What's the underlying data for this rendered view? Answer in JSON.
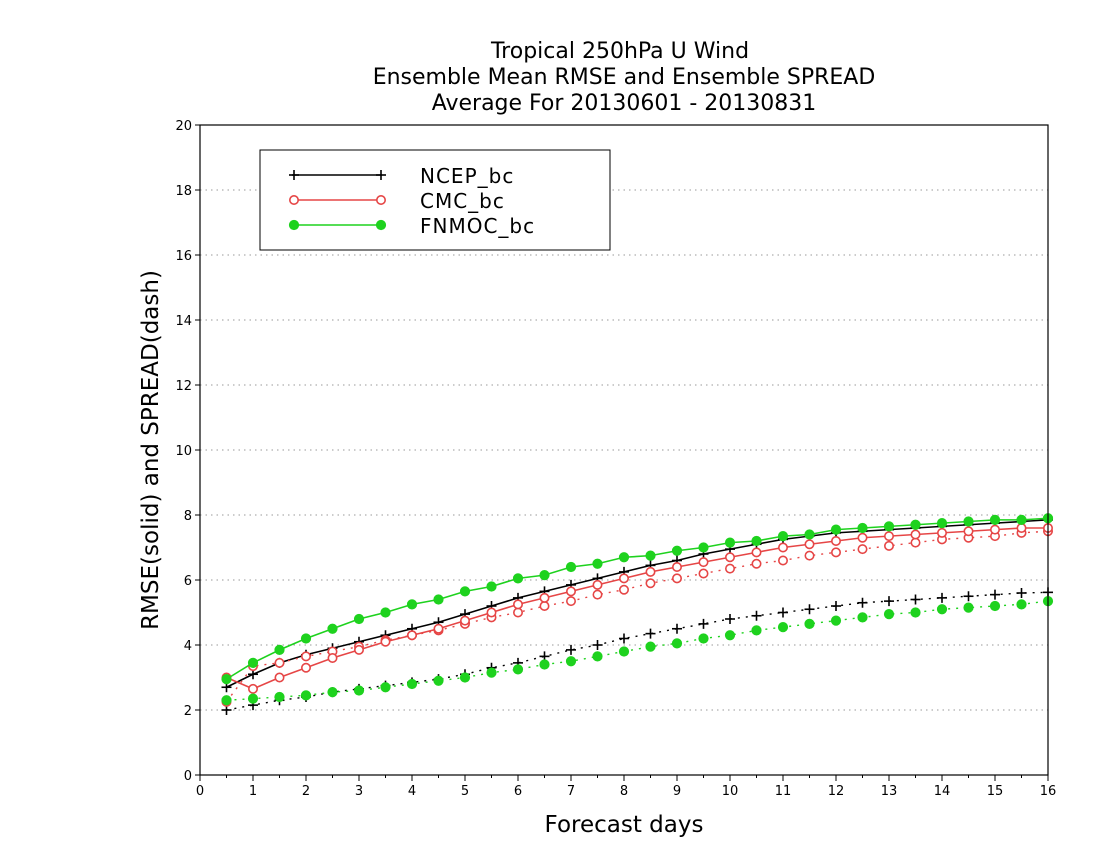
{
  "chart_data": {
    "type": "line",
    "title": [
      "Tropical 250hPa U Wind",
      "Ensemble Mean RMSE and Ensemble SPREAD",
      "Average For 20130601 - 20130831"
    ],
    "xlabel": "Forecast days",
    "ylabel": "RMSE(solid) and SPREAD(dash)",
    "xlim": [
      0,
      16
    ],
    "ylim": [
      0,
      20
    ],
    "xticks": [
      "0",
      "1",
      "2",
      "3",
      "4",
      "5",
      "6",
      "7",
      "8",
      "9",
      "10",
      "11",
      "12",
      "13",
      "14",
      "15",
      "16"
    ],
    "yticks": [
      "0",
      "2",
      "4",
      "6",
      "8",
      "10",
      "12",
      "14",
      "16",
      "18",
      "20"
    ],
    "grid": "horizontal dotted",
    "legend_position": "top-left",
    "x": [
      0.5,
      1,
      1.5,
      2,
      2.5,
      3,
      3.5,
      4,
      4.5,
      5,
      5.5,
      6,
      6.5,
      7,
      7.5,
      8,
      8.5,
      9,
      9.5,
      10,
      10.5,
      11,
      11.5,
      12,
      12.5,
      13,
      13.5,
      14,
      14.5,
      15,
      15.5,
      16
    ],
    "series": [
      {
        "name": "NCEP_bc",
        "color": "#000000",
        "marker": "plus",
        "rmse": [
          2.7,
          3.1,
          3.45,
          3.7,
          3.9,
          4.1,
          4.3,
          4.5,
          4.7,
          4.95,
          5.2,
          5.45,
          5.65,
          5.85,
          6.05,
          6.25,
          6.45,
          6.6,
          6.8,
          6.95,
          7.1,
          7.25,
          7.35,
          7.45,
          7.5,
          7.55,
          7.6,
          7.65,
          7.7,
          7.75,
          7.8,
          7.85
        ],
        "spread": [
          2.0,
          2.15,
          2.3,
          2.4,
          2.55,
          2.65,
          2.75,
          2.85,
          2.95,
          3.1,
          3.3,
          3.45,
          3.65,
          3.85,
          4.0,
          4.2,
          4.35,
          4.5,
          4.65,
          4.8,
          4.9,
          5.0,
          5.1,
          5.2,
          5.3,
          5.35,
          5.4,
          5.45,
          5.5,
          5.55,
          5.6,
          5.62
        ]
      },
      {
        "name": "CMC_bc",
        "color": "#e64646",
        "marker": "open-circle",
        "rmse": [
          3.0,
          2.65,
          3.0,
          3.3,
          3.6,
          3.85,
          4.1,
          4.3,
          4.5,
          4.75,
          5.0,
          5.25,
          5.45,
          5.65,
          5.85,
          6.05,
          6.25,
          6.4,
          6.55,
          6.7,
          6.85,
          7.0,
          7.1,
          7.2,
          7.3,
          7.35,
          7.4,
          7.45,
          7.5,
          7.55,
          7.6,
          7.6
        ],
        "spread": [
          2.25,
          3.35,
          3.45,
          3.65,
          3.8,
          3.95,
          4.15,
          4.3,
          4.45,
          4.65,
          4.85,
          5.0,
          5.2,
          5.35,
          5.55,
          5.7,
          5.9,
          6.05,
          6.2,
          6.35,
          6.5,
          6.6,
          6.75,
          6.85,
          6.95,
          7.05,
          7.15,
          7.25,
          7.3,
          7.35,
          7.45,
          7.5
        ]
      },
      {
        "name": "FNMOC_bc",
        "color": "#1ed21e",
        "marker": "filled-circle",
        "rmse": [
          2.95,
          3.45,
          3.85,
          4.2,
          4.5,
          4.8,
          5.0,
          5.25,
          5.4,
          5.65,
          5.8,
          6.05,
          6.15,
          6.4,
          6.5,
          6.7,
          6.75,
          6.9,
          7.0,
          7.15,
          7.2,
          7.35,
          7.4,
          7.55,
          7.6,
          7.65,
          7.7,
          7.75,
          7.8,
          7.85,
          7.85,
          7.9
        ],
        "spread": [
          2.3,
          2.35,
          2.4,
          2.45,
          2.55,
          2.6,
          2.7,
          2.8,
          2.9,
          3.0,
          3.15,
          3.25,
          3.4,
          3.5,
          3.65,
          3.8,
          3.95,
          4.05,
          4.2,
          4.3,
          4.45,
          4.55,
          4.65,
          4.75,
          4.85,
          4.95,
          5.0,
          5.1,
          5.15,
          5.2,
          5.25,
          5.35
        ]
      }
    ]
  }
}
